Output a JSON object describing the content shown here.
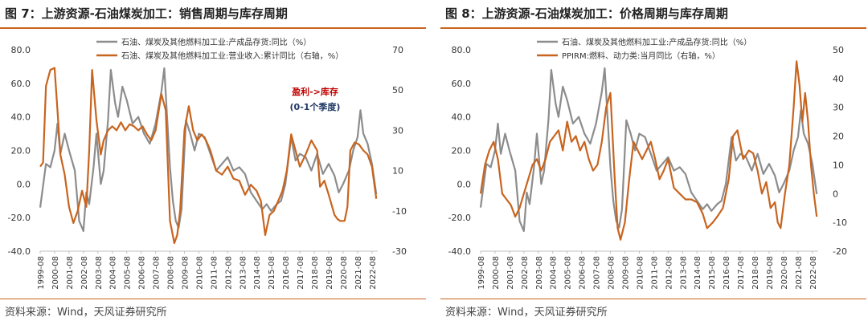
{
  "charts": [
    {
      "figure_title": "图 7：上游资源-石油煤炭加工：销售周期与库存周期",
      "source": "资料来源：Wind，天风证券研究所",
      "colors": {
        "series1": "#8c8c8c",
        "series2": "#c8641e",
        "annot1": "#c00000",
        "annot2": "#1f3864"
      },
      "annotations": [
        "盈利->库存",
        "(0-1个季度)"
      ]
    },
    {
      "figure_title": "图 8：上游资源-石油煤炭加工：价格周期与库存周期",
      "source": "资料来源：Wind，天风证券研究所",
      "colors": {
        "series1": "#8c8c8c",
        "series2": "#c8641e"
      },
      "annotations": []
    }
  ],
  "chart_data": [
    {
      "type": "line",
      "x_ticks": [
        "1999-08",
        "2000-08",
        "2001-08",
        "2002-08",
        "2003-08",
        "2004-08",
        "2005-08",
        "2006-08",
        "2007-08",
        "2008-08",
        "2009-08",
        "2010-08",
        "2011-08",
        "2012-08",
        "2013-08",
        "2014-08",
        "2015-08",
        "2016-08",
        "2017-08",
        "2018-08",
        "2019-08",
        "2020-08",
        "2021-08",
        "2022-08"
      ],
      "ylim_left": [
        -40,
        80
      ],
      "yticks_left": [
        "80.0",
        "60.0",
        "40.0",
        "20.0",
        "0.0",
        "-20.0",
        "-40.0"
      ],
      "ylim_right": [
        -30,
        70
      ],
      "yticks_right": [
        "70",
        "50",
        "30",
        "10",
        "-10",
        "-30"
      ],
      "legend_position": "top-center",
      "series": [
        {
          "name": "石油、煤炭及其他燃料加工业:产成品存货:同比（%）",
          "axis": "left",
          "x": [
            1999.6,
            2000.0,
            2000.3,
            2000.6,
            2000.8,
            2001.0,
            2001.3,
            2001.6,
            2002.0,
            2002.3,
            2002.6,
            2002.8,
            2003.0,
            2003.3,
            2003.5,
            2003.8,
            2004.0,
            2004.3,
            2004.5,
            2004.8,
            2005.0,
            2005.3,
            2005.6,
            2006.0,
            2006.4,
            2006.8,
            2007.2,
            2007.6,
            2008.0,
            2008.2,
            2008.4,
            2008.6,
            2008.8,
            2009.0,
            2009.2,
            2009.4,
            2009.7,
            2010.0,
            2010.3,
            2010.6,
            2011.0,
            2011.4,
            2011.8,
            2012.2,
            2012.6,
            2013.0,
            2013.4,
            2013.8,
            2014.2,
            2014.6,
            2015.0,
            2015.3,
            2015.6,
            2016.0,
            2016.3,
            2016.6,
            2017.0,
            2017.3,
            2017.6,
            2018.0,
            2018.4,
            2018.8,
            2019.2,
            2019.6,
            2020.0,
            2020.3,
            2020.6,
            2021.0,
            2021.3,
            2021.6,
            2021.8,
            2022.0,
            2022.3,
            2022.6,
            2022.9
          ],
          "y": [
            -14,
            12,
            10,
            20,
            36,
            18,
            30,
            20,
            8,
            -22,
            -28,
            -5,
            -12,
            10,
            30,
            0,
            8,
            38,
            68,
            48,
            40,
            58,
            50,
            36,
            40,
            30,
            24,
            36,
            55,
            69,
            40,
            10,
            -10,
            -22,
            -26,
            -15,
            38,
            30,
            20,
            30,
            28,
            18,
            8,
            12,
            16,
            8,
            10,
            6,
            -5,
            -10,
            -15,
            -12,
            -16,
            -12,
            -10,
            0,
            28,
            14,
            18,
            16,
            8,
            18,
            6,
            12,
            5,
            -5,
            0,
            8,
            20,
            28,
            44,
            30,
            24,
            12,
            -6
          ]
        },
        {
          "name": "石油、煤炭及其他燃料加工业:营业收入:累计同比（右轴，%）",
          "axis": "right",
          "x": [
            1999.6,
            1999.8,
            2000.0,
            2000.3,
            2000.6,
            2000.8,
            2001.0,
            2001.3,
            2001.6,
            2001.9,
            2002.2,
            2002.5,
            2002.8,
            2003.0,
            2003.2,
            2003.5,
            2003.8,
            2004.0,
            2004.3,
            2004.6,
            2004.9,
            2005.2,
            2005.5,
            2005.8,
            2006.1,
            2006.4,
            2006.7,
            2007.0,
            2007.3,
            2007.6,
            2008.0,
            2008.3,
            2008.6,
            2008.9,
            2009.1,
            2009.3,
            2009.6,
            2009.9,
            2010.2,
            2010.5,
            2010.8,
            2011.1,
            2011.4,
            2011.8,
            2012.2,
            2012.6,
            2013.0,
            2013.4,
            2013.8,
            2014.2,
            2014.6,
            2014.9,
            2015.2,
            2015.5,
            2015.8,
            2016.1,
            2016.4,
            2016.7,
            2017.0,
            2017.3,
            2017.6,
            2018.0,
            2018.4,
            2018.8,
            2019.0,
            2019.3,
            2019.6,
            2020.0,
            2020.2,
            2020.4,
            2020.7,
            2020.9,
            2021.1,
            2021.4,
            2021.7,
            2022.0,
            2022.3,
            2022.6,
            2022.9
          ],
          "y": [
            12,
            14,
            52,
            60,
            61,
            40,
            18,
            8,
            -8,
            -16,
            -10,
            0,
            -8,
            20,
            60,
            35,
            18,
            25,
            30,
            32,
            30,
            34,
            30,
            33,
            32,
            30,
            32,
            28,
            25,
            30,
            48,
            40,
            -15,
            -26,
            -22,
            -10,
            30,
            42,
            30,
            25,
            28,
            25,
            20,
            10,
            8,
            12,
            6,
            5,
            -2,
            3,
            0,
            -5,
            -22,
            -12,
            -10,
            -5,
            0,
            10,
            28,
            20,
            12,
            18,
            25,
            20,
            2,
            5,
            -2,
            -12,
            -14,
            -15,
            -15,
            -8,
            20,
            24,
            23,
            20,
            18,
            12,
            -4
          ]
        }
      ]
    },
    {
      "type": "line",
      "x_ticks": [
        "1999-08",
        "2000-08",
        "2001-08",
        "2002-08",
        "2003-08",
        "2004-08",
        "2005-08",
        "2006-08",
        "2007-08",
        "2008-08",
        "2009-08",
        "2010-08",
        "2011-08",
        "2012-08",
        "2013-08",
        "2014-08",
        "2015-08",
        "2016-08",
        "2017-08",
        "2018-08",
        "2019-08",
        "2020-08",
        "2021-08",
        "2022-08"
      ],
      "ylim_left": [
        -40,
        80
      ],
      "yticks_left": [
        "80.0",
        "60.0",
        "40.0",
        "20.0",
        "0.0",
        "-20.0",
        "-40.0"
      ],
      "ylim_right": [
        -20,
        50
      ],
      "yticks_right": [
        "50",
        "40",
        "30",
        "20",
        "10",
        "0",
        "-10",
        "-20"
      ],
      "legend_position": "top-center",
      "series": [
        {
          "name": "石油、煤炭及其他燃料加工业:产成品存货:同比（%）",
          "axis": "left",
          "x": [
            1999.6,
            2000.0,
            2000.3,
            2000.6,
            2000.8,
            2001.0,
            2001.3,
            2001.6,
            2002.0,
            2002.3,
            2002.6,
            2002.8,
            2003.0,
            2003.3,
            2003.5,
            2003.8,
            2004.0,
            2004.3,
            2004.5,
            2004.8,
            2005.0,
            2005.3,
            2005.6,
            2006.0,
            2006.4,
            2006.8,
            2007.2,
            2007.6,
            2008.0,
            2008.2,
            2008.4,
            2008.6,
            2008.8,
            2009.0,
            2009.2,
            2009.4,
            2009.7,
            2010.0,
            2010.3,
            2010.6,
            2011.0,
            2011.4,
            2011.8,
            2012.2,
            2012.6,
            2013.0,
            2013.4,
            2013.8,
            2014.2,
            2014.6,
            2015.0,
            2015.3,
            2015.6,
            2016.0,
            2016.3,
            2016.6,
            2017.0,
            2017.3,
            2017.6,
            2018.0,
            2018.4,
            2018.8,
            2019.2,
            2019.6,
            2020.0,
            2020.3,
            2020.6,
            2021.0,
            2021.3,
            2021.6,
            2021.8,
            2022.0,
            2022.3,
            2022.6,
            2022.9
          ],
          "y": [
            -14,
            12,
            10,
            20,
            36,
            18,
            30,
            20,
            8,
            -22,
            -28,
            -5,
            -12,
            10,
            30,
            0,
            8,
            38,
            68,
            48,
            40,
            58,
            50,
            36,
            40,
            30,
            24,
            36,
            55,
            69,
            40,
            10,
            -10,
            -22,
            -26,
            -15,
            38,
            30,
            20,
            30,
            28,
            18,
            8,
            12,
            16,
            8,
            10,
            6,
            -5,
            -10,
            -15,
            -12,
            -16,
            -12,
            -10,
            0,
            28,
            14,
            18,
            16,
            8,
            18,
            6,
            12,
            5,
            -5,
            0,
            8,
            20,
            28,
            44,
            30,
            24,
            12,
            -6
          ]
        },
        {
          "name": "PPIRM:燃料、动力类:当月同比（右轴，%）",
          "axis": "right",
          "x": [
            1999.6,
            1999.9,
            2000.2,
            2000.5,
            2000.8,
            2001.1,
            2001.4,
            2001.7,
            2002.0,
            2002.3,
            2002.6,
            2002.9,
            2003.2,
            2003.5,
            2003.8,
            2004.1,
            2004.4,
            2004.7,
            2005.0,
            2005.3,
            2005.6,
            2005.9,
            2006.2,
            2006.5,
            2006.8,
            2007.1,
            2007.4,
            2007.7,
            2008.0,
            2008.3,
            2008.6,
            2008.9,
            2009.1,
            2009.3,
            2009.6,
            2009.9,
            2010.2,
            2010.5,
            2010.8,
            2011.1,
            2011.4,
            2011.7,
            2012.0,
            2012.3,
            2012.6,
            2013.0,
            2013.4,
            2013.8,
            2014.2,
            2014.6,
            2015.0,
            2015.3,
            2015.7,
            2016.0,
            2016.4,
            2016.8,
            2017.1,
            2017.4,
            2017.8,
            2018.2,
            2018.5,
            2018.8,
            2019.1,
            2019.4,
            2019.7,
            2020.0,
            2020.2,
            2020.4,
            2020.7,
            2021.0,
            2021.3,
            2021.5,
            2021.7,
            2021.9,
            2022.1,
            2022.3,
            2022.5,
            2022.7,
            2022.9
          ],
          "y": [
            0,
            10,
            15,
            18,
            12,
            0,
            -2,
            -4,
            -8,
            -5,
            0,
            5,
            10,
            12,
            8,
            12,
            18,
            20,
            22,
            15,
            25,
            18,
            20,
            15,
            18,
            12,
            8,
            10,
            18,
            30,
            35,
            5,
            -12,
            -16,
            -10,
            5,
            18,
            15,
            12,
            15,
            18,
            12,
            5,
            8,
            12,
            2,
            0,
            -2,
            -2,
            -3,
            -7,
            -12,
            -10,
            -8,
            -5,
            5,
            20,
            22,
            12,
            15,
            14,
            8,
            0,
            4,
            -5,
            -3,
            -10,
            -12,
            0,
            10,
            30,
            46,
            38,
            25,
            35,
            25,
            10,
            0,
            -8
          ]
        }
      ]
    }
  ]
}
